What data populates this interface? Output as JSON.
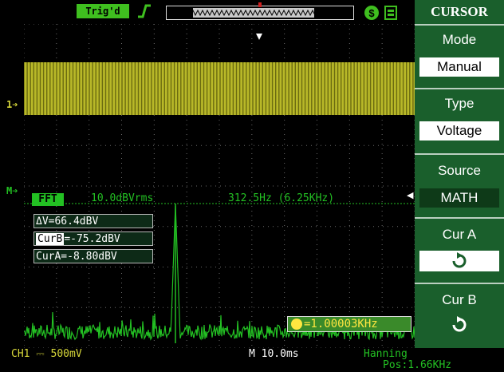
{
  "topbar": {
    "trigger_status": "Trig'd",
    "trigger_icon": "trigger-edge-icon",
    "usb_icon": "usb-icon",
    "print_icon": "print-icon"
  },
  "fft": {
    "label": "FFT",
    "scale": "10.0dBVrms",
    "freq": "312.5Hz (6.25KHz)"
  },
  "cursor_readout": {
    "delta": "ΔV=66.4dBV",
    "curb_label": "CurB",
    "curb_value": "=-75.2dBV",
    "cura": "CurA=-8.80dBV"
  },
  "counter": {
    "icon": "frequency-counter-icon",
    "value": "=1.00003KHz"
  },
  "menu": {
    "title": "CURSOR",
    "mode_label": "Mode",
    "mode_value": "Manual",
    "type_label": "Type",
    "type_value": "Voltage",
    "source_label": "Source",
    "source_value": "MATH",
    "cura_label": "Cur A",
    "curb_label": "Cur B"
  },
  "bottom": {
    "ch1": "CH1 ⎓ 500mV",
    "timebase": "M 10.0ms",
    "window": "Hanning",
    "pos": "Pos:1.66KHz"
  },
  "markers": {
    "ch1": "1",
    "math": "M"
  },
  "colors": {
    "ch1": "#d8d83a",
    "math": "#23c023",
    "menu_bg": "#1a5f2c",
    "accent_green": "#3fbf1f"
  }
}
